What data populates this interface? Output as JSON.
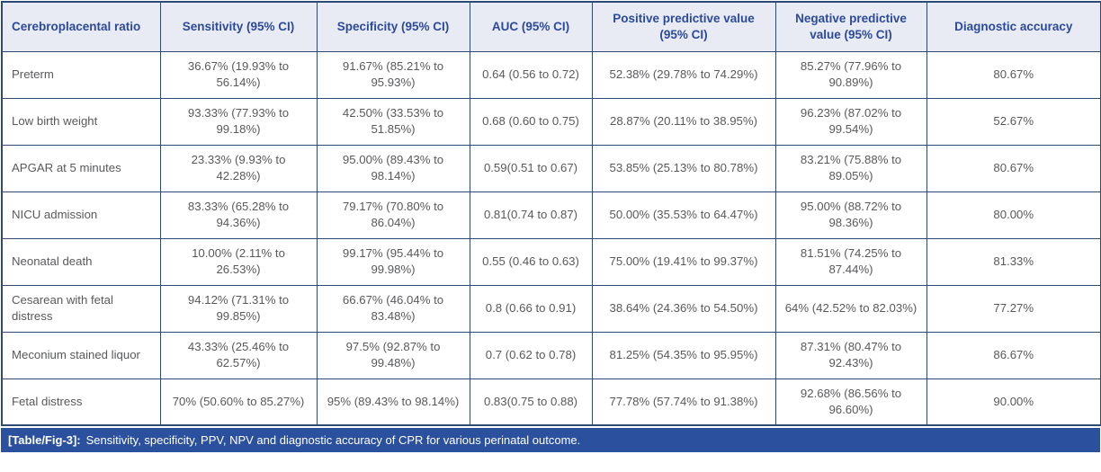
{
  "colors": {
    "header_bg": "#e9ebf4",
    "header_text": "#2b4a9c",
    "border": "#2c4a72",
    "body_text": "#58595b",
    "caption_bg": "#2b509e",
    "caption_text": "#ffffff"
  },
  "table": {
    "columns": [
      "Cerebroplacental ratio",
      "Sensitivity (95% CI)",
      "Specificity (95% CI)",
      "AUC (95% CI)",
      "Positive predictive value (95% CI)",
      "Negative predictive value (95% CI)",
      "Diagnostic accuracy"
    ],
    "rows": [
      {
        "label": "Preterm",
        "cells": [
          "36.67% (19.93% to 56.14%)",
          "91.67% (85.21% to 95.93%)",
          "0.64 (0.56 to 0.72)",
          "52.38% (29.78% to 74.29%)",
          "85.27% (77.96% to 90.89%)",
          "80.67%"
        ]
      },
      {
        "label": "Low birth weight",
        "cells": [
          "93.33% (77.93% to 99.18%)",
          "42.50% (33.53% to 51.85%)",
          "0.68 (0.60 to 0.75)",
          "28.87% (20.11% to 38.95%)",
          "96.23% (87.02% to 99.54%)",
          "52.67%"
        ]
      },
      {
        "label": "APGAR at 5 minutes",
        "cells": [
          "23.33% (9.93% to 42.28%)",
          "95.00% (89.43% to 98.14%)",
          "0.59(0.51 to 0.67)",
          "53.85% (25.13% to 80.78%)",
          "83.21% (75.88% to 89.05%)",
          "80.67%"
        ]
      },
      {
        "label": "NICU admission",
        "cells": [
          "83.33% (65.28% to 94.36%)",
          "79.17% (70.80% to 86.04%)",
          "0.81(0.74 to 0.87)",
          "50.00% (35.53% to 64.47%)",
          "95.00% (88.72% to 98.36%)",
          "80.00%"
        ]
      },
      {
        "label": "Neonatal death",
        "cells": [
          "10.00% (2.11% to 26.53%)",
          "99.17% (95.44% to 99.98%)",
          "0.55 (0.46 to 0.63)",
          "75.00% (19.41% to 99.37%)",
          "81.51% (74.25% to 87.44%)",
          "81.33%"
        ]
      },
      {
        "label": "Cesarean with fetal distress",
        "cells": [
          "94.12% (71.31% to 99.85%)",
          "66.67% (46.04% to 83.48%)",
          "0.8 (0.66 to 0.91)",
          "38.64% (24.36% to 54.50%)",
          "64% (42.52% to 82.03%)",
          "77.27%"
        ]
      },
      {
        "label": "Meconium stained liquor",
        "cells": [
          "43.33% (25.46% to 62.57%)",
          "97.5% (92.87% to 99.48%)",
          "0.7 (0.62 to 0.78)",
          "81.25% (54.35% to 95.95%)",
          "87.31% (80.47% to 92.43%)",
          "86.67%"
        ]
      },
      {
        "label": "Fetal distress",
        "cells": [
          "70% (50.60% to 85.27%)",
          "95% (89.43% to 98.14%)",
          "0.83(0.75 to 0.88)",
          "77.78% (57.74% to 91.38%)",
          "92.68% (86.56% to 96.60%)",
          "90.00%"
        ]
      }
    ]
  },
  "caption": {
    "label": "[Table/Fig-3]:",
    "text": "Sensitivity, specificity, PPV, NPV and diagnostic accuracy of CPR for various perinatal outcome."
  }
}
